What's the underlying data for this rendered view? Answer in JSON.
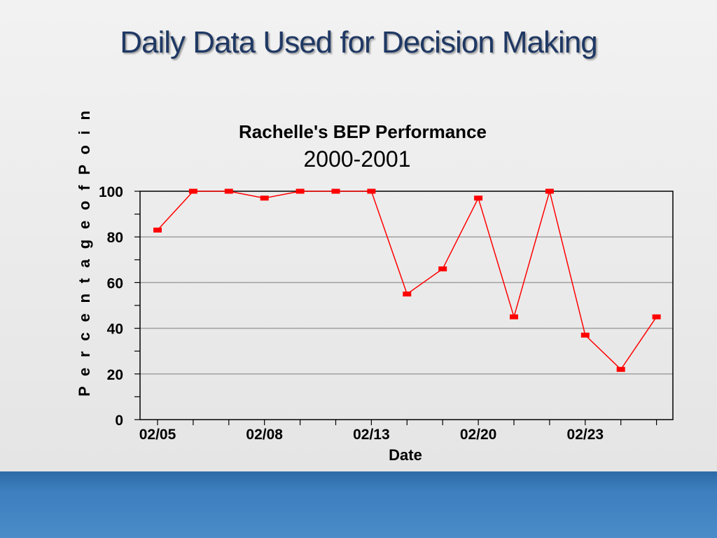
{
  "slide": {
    "title": "Daily Data Used for Decision Making"
  },
  "colors": {
    "series": "#ff0000",
    "title": "#1f3864",
    "grid": "#a0a0a0"
  },
  "chart_data": {
    "type": "line",
    "title": "Rachelle's BEP Performance",
    "subtitle": "2000-2001",
    "xlabel": "Date",
    "ylabel": "P e r c e n t a g e  o f  P o i n",
    "ylim": [
      0,
      100
    ],
    "yticks": [
      0,
      20,
      40,
      60,
      80,
      100
    ],
    "grid": true,
    "x_tick_labels": [
      "02/05",
      "",
      "",
      "02/08",
      "",
      "",
      "02/13",
      "",
      "",
      "02/20",
      "",
      "",
      "02/23",
      "",
      ""
    ],
    "series": [
      {
        "values": [
          83,
          100,
          100,
          97,
          100,
          100,
          100,
          55,
          66,
          97,
          45,
          100,
          37,
          22,
          45
        ]
      }
    ]
  }
}
